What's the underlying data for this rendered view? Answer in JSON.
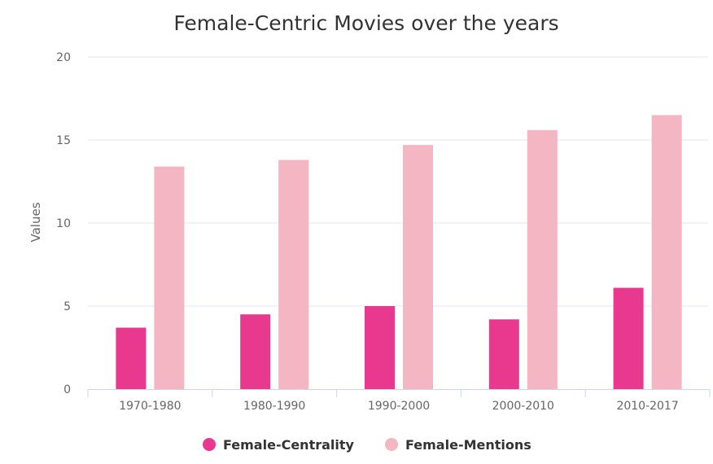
{
  "chart_data": {
    "type": "bar",
    "title": "Female-Centric Movies over the years",
    "xlabel": "",
    "ylabel": "Values",
    "categories": [
      "1970-1980",
      "1980-1990",
      "1990-2000",
      "2000-2010",
      "2010-2017"
    ],
    "series": [
      {
        "name": "Female-Centrality",
        "color": "#e8398f",
        "values": [
          3.7,
          4.5,
          5.0,
          4.2,
          6.1
        ]
      },
      {
        "name": "Female-Mentions",
        "color": "#f4b6c2",
        "values": [
          13.4,
          13.8,
          14.7,
          15.6,
          16.5
        ]
      }
    ],
    "ylim": [
      0,
      20
    ],
    "yticks": [
      0,
      5,
      10,
      15,
      20
    ],
    "grid": true,
    "legend_position": "bottom-center",
    "gridline_color": "#e6e6f0",
    "axis_color": "#ccd6eb"
  }
}
